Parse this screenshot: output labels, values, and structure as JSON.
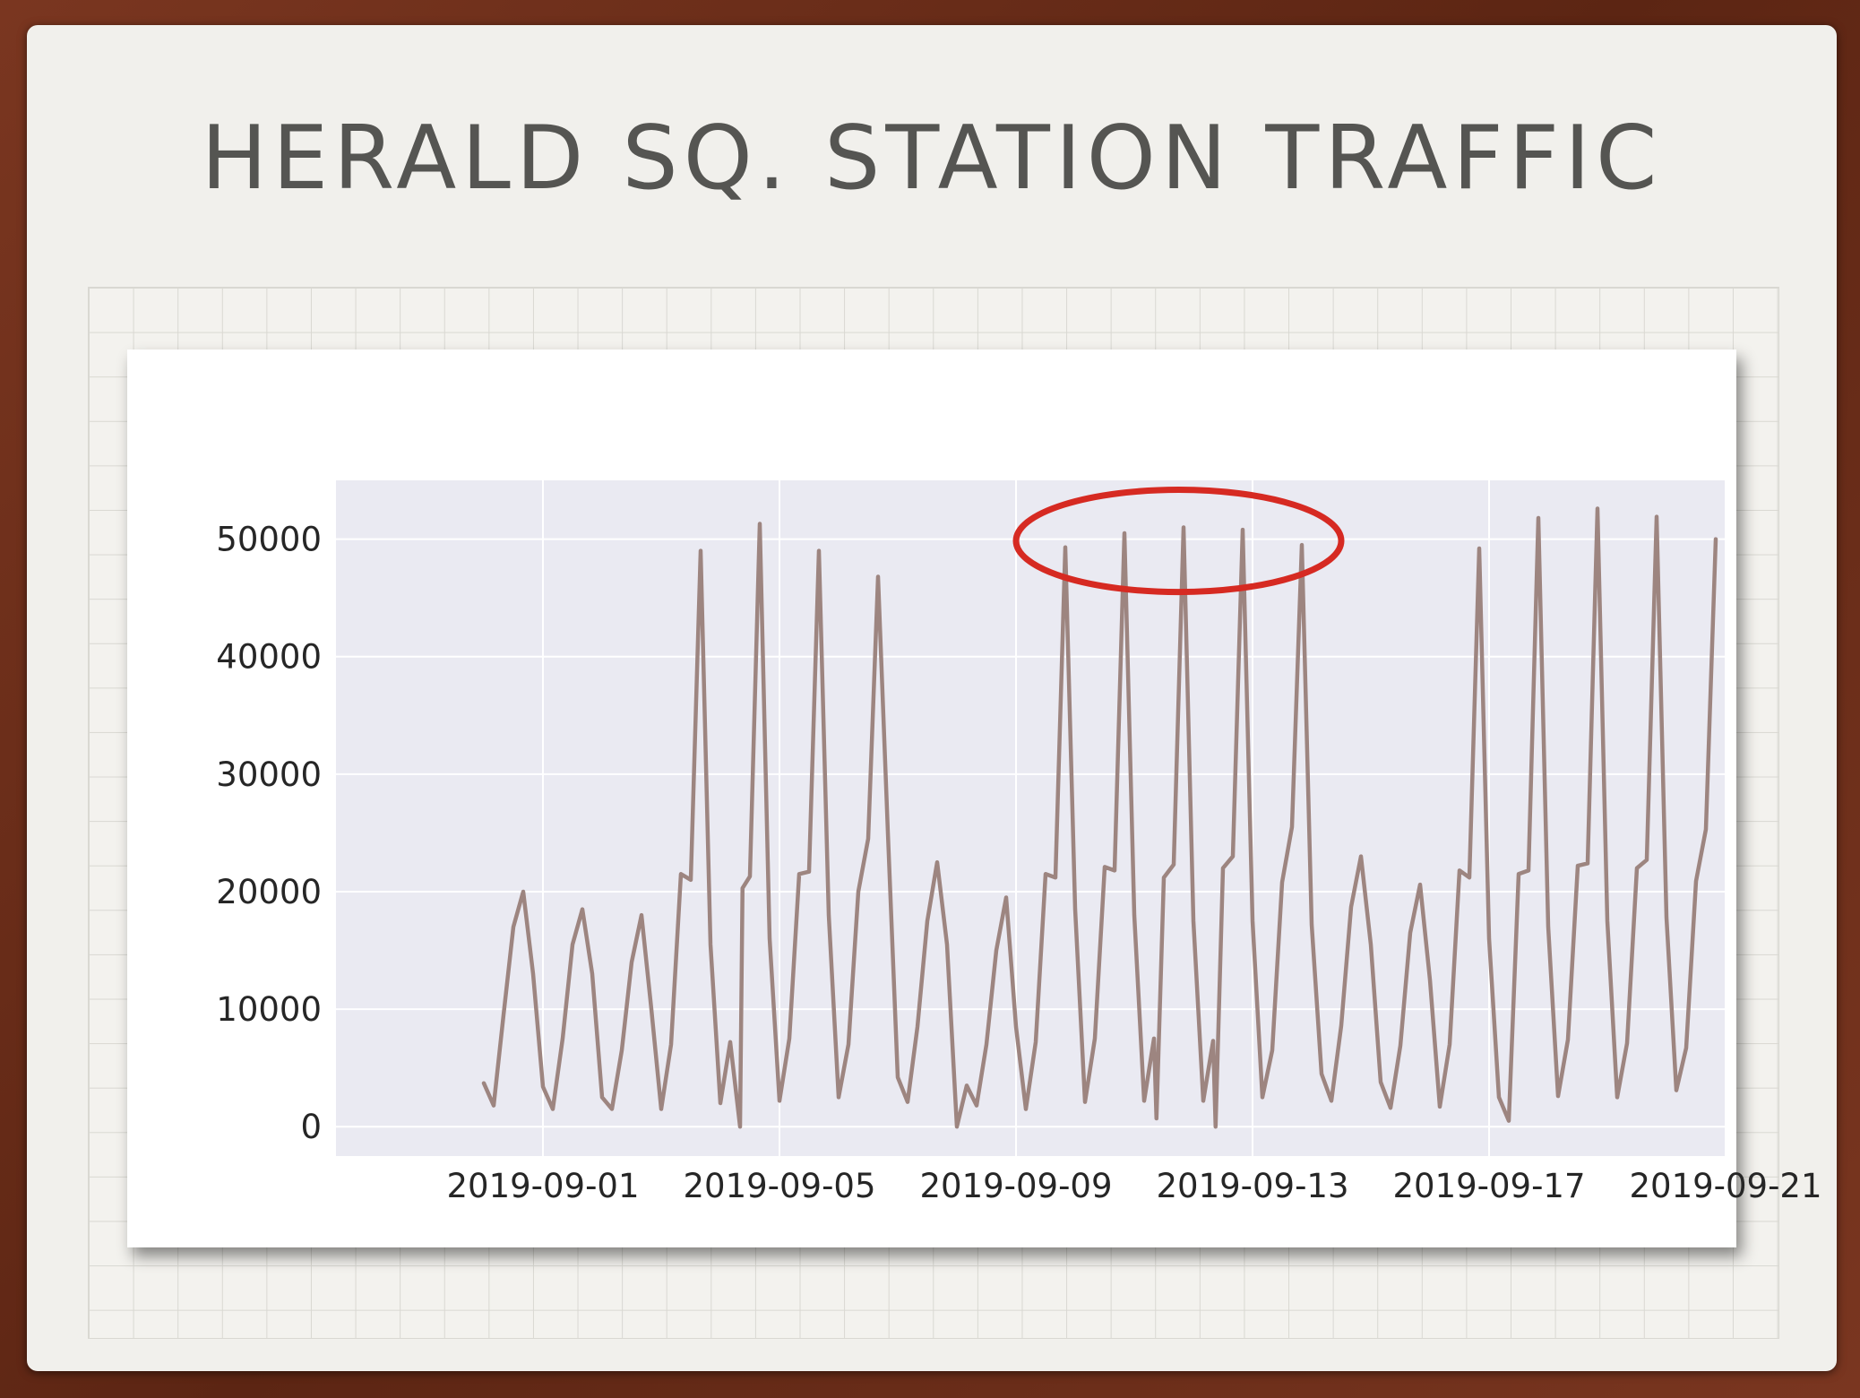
{
  "slide": {
    "title": "HERALD SQ. STATION TRAFFIC"
  },
  "colors": {
    "frame": "#6b2e1a",
    "slide_background": "#f1f0ec",
    "title_text": "#555552",
    "plot_background": "#eaeaf2",
    "gridline": "#ffffff",
    "series_line": "#9d8580",
    "highlight_ellipse": "#d62a22"
  },
  "annotation": {
    "shape": "ellipse",
    "description_hidden": true,
    "center_x": "2019-09-11T18:00",
    "center_y": 50000,
    "x_extent": [
      "2019-09-09T00:00",
      "2019-09-14T12:00"
    ],
    "y_extent": [
      45500,
      54200
    ]
  },
  "chart_data": {
    "type": "line",
    "title": "",
    "xlabel": "",
    "ylabel": "",
    "grid": true,
    "legend": "none",
    "xlim": [
      "2019-08-28T12:00",
      "2019-09-21T00:00"
    ],
    "ylim": [
      -2500,
      55000
    ],
    "x_ticks": [
      "2019-09-01",
      "2019-09-05",
      "2019-09-09",
      "2019-09-13",
      "2019-09-17",
      "2019-09-21"
    ],
    "y_ticks": [
      0,
      10000,
      20000,
      30000,
      40000,
      50000
    ],
    "y_tick_labels": [
      "0",
      "10000",
      "20000",
      "30000",
      "40000",
      "50000"
    ],
    "series": [
      {
        "color": "#9d8580",
        "x": [
          "2019-08-31T00:00",
          "2019-08-31T04:00",
          "2019-08-31T08:00",
          "2019-08-31T12:00",
          "2019-08-31T16:00",
          "2019-08-31T20:00",
          "2019-09-01T00:00",
          "2019-09-01T04:00",
          "2019-09-01T08:00",
          "2019-09-01T12:00",
          "2019-09-01T16:00",
          "2019-09-01T20:00",
          "2019-09-02T00:00",
          "2019-09-02T04:00",
          "2019-09-02T08:00",
          "2019-09-02T12:00",
          "2019-09-02T16:00",
          "2019-09-02T20:00",
          "2019-09-03T00:00",
          "2019-09-03T04:00",
          "2019-09-03T08:00",
          "2019-09-03T12:00",
          "2019-09-03T16:00",
          "2019-09-03T20:00",
          "2019-09-04T00:00",
          "2019-09-04T04:00",
          "2019-09-04T08:00",
          "2019-09-04T09:00",
          "2019-09-04T12:00",
          "2019-09-04T16:00",
          "2019-09-04T20:00",
          "2019-09-05T00:00",
          "2019-09-05T04:00",
          "2019-09-05T08:00",
          "2019-09-05T12:00",
          "2019-09-05T16:00",
          "2019-09-05T20:00",
          "2019-09-06T00:00",
          "2019-09-06T04:00",
          "2019-09-06T08:00",
          "2019-09-06T12:00",
          "2019-09-06T16:00",
          "2019-09-06T20:00",
          "2019-09-07T00:00",
          "2019-09-07T04:00",
          "2019-09-07T08:00",
          "2019-09-07T12:00",
          "2019-09-07T16:00",
          "2019-09-07T20:00",
          "2019-09-08T00:00",
          "2019-09-08T04:00",
          "2019-09-08T08:00",
          "2019-09-08T12:00",
          "2019-09-08T16:00",
          "2019-09-08T20:00",
          "2019-09-09T00:00",
          "2019-09-09T04:00",
          "2019-09-09T08:00",
          "2019-09-09T12:00",
          "2019-09-09T16:00",
          "2019-09-09T20:00",
          "2019-09-10T00:00",
          "2019-09-10T04:00",
          "2019-09-10T08:00",
          "2019-09-10T12:00",
          "2019-09-10T16:00",
          "2019-09-10T20:00",
          "2019-09-11T00:00",
          "2019-09-11T04:00",
          "2019-09-11T08:00",
          "2019-09-11T09:00",
          "2019-09-11T12:00",
          "2019-09-11T16:00",
          "2019-09-11T20:00",
          "2019-09-12T00:00",
          "2019-09-12T04:00",
          "2019-09-12T08:00",
          "2019-09-12T09:00",
          "2019-09-12T12:00",
          "2019-09-12T16:00",
          "2019-09-12T20:00",
          "2019-09-13T00:00",
          "2019-09-13T04:00",
          "2019-09-13T08:00",
          "2019-09-13T12:00",
          "2019-09-13T16:00",
          "2019-09-13T20:00",
          "2019-09-14T00:00",
          "2019-09-14T04:00",
          "2019-09-14T08:00",
          "2019-09-14T12:00",
          "2019-09-14T16:00",
          "2019-09-14T20:00",
          "2019-09-15T00:00",
          "2019-09-15T04:00",
          "2019-09-15T08:00",
          "2019-09-15T12:00",
          "2019-09-15T16:00",
          "2019-09-15T20:00",
          "2019-09-16T00:00",
          "2019-09-16T04:00",
          "2019-09-16T08:00",
          "2019-09-16T12:00",
          "2019-09-16T16:00",
          "2019-09-16T20:00",
          "2019-09-17T00:00",
          "2019-09-17T04:00",
          "2019-09-17T08:00",
          "2019-09-17T12:00",
          "2019-09-17T16:00",
          "2019-09-17T20:00",
          "2019-09-18T00:00",
          "2019-09-18T04:00",
          "2019-09-18T08:00",
          "2019-09-18T12:00",
          "2019-09-18T16:00",
          "2019-09-18T20:00",
          "2019-09-19T00:00",
          "2019-09-19T04:00",
          "2019-09-19T08:00",
          "2019-09-19T12:00",
          "2019-09-19T16:00",
          "2019-09-19T20:00",
          "2019-09-20T00:00",
          "2019-09-20T04:00",
          "2019-09-20T08:00",
          "2019-09-20T12:00",
          "2019-09-20T16:00",
          "2019-09-20T20:00"
        ],
        "y": [
          3700,
          1800,
          9500,
          17000,
          20000,
          13000,
          3400,
          1500,
          7500,
          15500,
          18500,
          13000,
          2500,
          1500,
          6500,
          14000,
          18000,
          10000,
          1500,
          7000,
          21500,
          21000,
          49000,
          15500,
          2000,
          7200,
          0,
          20300,
          21300,
          51300,
          16000,
          2200,
          7500,
          21500,
          21700,
          49000,
          18000,
          2500,
          7000,
          20000,
          24500,
          46800,
          25000,
          4200,
          2100,
          8500,
          17500,
          22500,
          15500,
          0,
          3500,
          1800,
          7000,
          15000,
          19500,
          8500,
          1500,
          7200,
          21500,
          21200,
          49300,
          18500,
          2100,
          7500,
          22100,
          21800,
          50500,
          18000,
          2200,
          7500,
          700,
          21200,
          22300,
          51000,
          17500,
          2200,
          7300,
          0,
          22000,
          23000,
          50800,
          17500,
          2500,
          6500,
          20800,
          25500,
          49500,
          17200,
          4500,
          2200,
          8600,
          18700,
          23000,
          15500,
          3800,
          1600,
          6900,
          16500,
          20600,
          12500,
          1700,
          7000,
          21800,
          21200,
          49200,
          16000,
          2500,
          500,
          21500,
          21800,
          51800,
          17000,
          2600,
          7400,
          22200,
          22400,
          52600,
          17500,
          2500,
          7100,
          22000,
          22700,
          51900,
          17800,
          3100,
          6700,
          20900,
          25300,
          50000
        ]
      }
    ]
  }
}
